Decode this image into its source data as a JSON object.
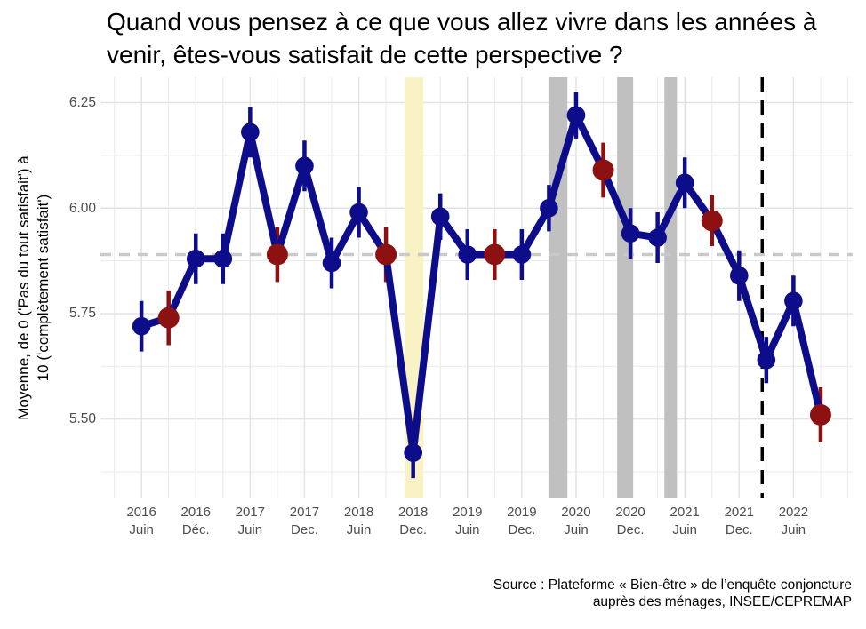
{
  "chart_data": {
    "type": "line",
    "title": "Quand vous pensez à ce que vous allez vivre dans les années à venir, êtes-vous satisfait de cette perspective ?",
    "title_lines": [
      "Quand vous pensez à ce que vous allez vivre dans les années à",
      "venir, êtes-vous satisfait de cette perspective ?"
    ],
    "ylabel": "Moyenne, de 0 ('Pas du tout satisfait') à 10 ('complètement satisfait')",
    "ylabel_lines": [
      "Moyenne, de 0 ('Pas du tout satisfait') à",
      "10 ('complètement satisfait')"
    ],
    "source": "Source : Plateforme « Bien-être » de l’enquête conjoncture auprès des ménages, INSEE/CEPREMAP",
    "source_lines": [
      "Source : Plateforme « Bien-être » de l’enquête conjoncture",
      "auprès des ménages, INSEE/CEPREMAP"
    ],
    "legend": false,
    "grid": true,
    "ylim": [
      5.31,
      6.31
    ],
    "y_ticks": [
      {
        "value": 6.25,
        "label": "6.25"
      },
      {
        "value": 6.0,
        "label": "6.00"
      },
      {
        "value": 5.75,
        "label": "5.75"
      },
      {
        "value": 5.5,
        "label": "5.50"
      }
    ],
    "y_minor": [
      6.125,
      5.875,
      5.625,
      5.375
    ],
    "x_ticks": [
      {
        "q": 0,
        "year": "2016",
        "month": "Juin"
      },
      {
        "q": 2,
        "year": "2016",
        "month": "Déc."
      },
      {
        "q": 4,
        "year": "2017",
        "month": "Juin"
      },
      {
        "q": 6,
        "year": "2017",
        "month": "Dec."
      },
      {
        "q": 8,
        "year": "2018",
        "month": "Juin"
      },
      {
        "q": 10,
        "year": "2018",
        "month": "Dec."
      },
      {
        "q": 12,
        "year": "2019",
        "month": "Juin"
      },
      {
        "q": 14,
        "year": "2019",
        "month": "Dec."
      },
      {
        "q": 16,
        "year": "2020",
        "month": "Juin"
      },
      {
        "q": 18,
        "year": "2020",
        "month": "Dec."
      },
      {
        "q": 20,
        "year": "2021",
        "month": "Juin"
      },
      {
        "q": 22,
        "year": "2021",
        "month": "Dec."
      },
      {
        "q": 24,
        "year": "2022",
        "month": "Juin"
      }
    ],
    "points": [
      {
        "date": "2016-06",
        "q": 0,
        "value": 5.72,
        "err": 0.06,
        "color_key": "blue"
      },
      {
        "date": "2016-09",
        "q": 1,
        "value": 5.74,
        "err": 0.065,
        "color_key": "red"
      },
      {
        "date": "2016-12",
        "q": 2,
        "value": 5.88,
        "err": 0.06,
        "color_key": "blue"
      },
      {
        "date": "2017-03",
        "q": 3,
        "value": 5.88,
        "err": 0.06,
        "color_key": "blue"
      },
      {
        "date": "2017-06",
        "q": 4,
        "value": 6.18,
        "err": 0.06,
        "color_key": "blue"
      },
      {
        "date": "2017-09",
        "q": 5,
        "value": 5.89,
        "err": 0.065,
        "color_key": "red"
      },
      {
        "date": "2017-12",
        "q": 6,
        "value": 6.1,
        "err": 0.06,
        "color_key": "blue"
      },
      {
        "date": "2018-03",
        "q": 7,
        "value": 5.87,
        "err": 0.06,
        "color_key": "blue"
      },
      {
        "date": "2018-06",
        "q": 8,
        "value": 5.99,
        "err": 0.06,
        "color_key": "blue"
      },
      {
        "date": "2018-09",
        "q": 9,
        "value": 5.89,
        "err": 0.065,
        "color_key": "red"
      },
      {
        "date": "2018-12",
        "q": 10,
        "value": 5.42,
        "err": 0.06,
        "color_key": "blue"
      },
      {
        "date": "2019-03",
        "q": 11,
        "value": 5.98,
        "err": 0.055,
        "color_key": "blue"
      },
      {
        "date": "2019-06",
        "q": 12,
        "value": 5.89,
        "err": 0.06,
        "color_key": "blue"
      },
      {
        "date": "2019-09",
        "q": 13,
        "value": 5.89,
        "err": 0.06,
        "color_key": "red"
      },
      {
        "date": "2019-12",
        "q": 14,
        "value": 5.89,
        "err": 0.06,
        "color_key": "blue"
      },
      {
        "date": "2020-03",
        "q": 15,
        "value": 6.0,
        "err": 0.055,
        "color_key": "blue"
      },
      {
        "date": "2020-06",
        "q": 16,
        "value": 6.22,
        "err": 0.055,
        "color_key": "blue"
      },
      {
        "date": "2020-09",
        "q": 17,
        "value": 6.09,
        "err": 0.065,
        "color_key": "red"
      },
      {
        "date": "2020-12",
        "q": 18,
        "value": 5.94,
        "err": 0.06,
        "color_key": "blue"
      },
      {
        "date": "2021-03",
        "q": 19,
        "value": 5.93,
        "err": 0.06,
        "color_key": "blue"
      },
      {
        "date": "2021-06",
        "q": 20,
        "value": 6.06,
        "err": 0.06,
        "color_key": "blue"
      },
      {
        "date": "2021-09",
        "q": 21,
        "value": 5.97,
        "err": 0.06,
        "color_key": "red"
      },
      {
        "date": "2021-12",
        "q": 22,
        "value": 5.84,
        "err": 0.06,
        "color_key": "blue"
      },
      {
        "date": "2022-03",
        "q": 23,
        "value": 5.64,
        "err": 0.055,
        "color_key": "blue"
      },
      {
        "date": "2022-06",
        "q": 24,
        "value": 5.78,
        "err": 0.06,
        "color_key": "blue"
      },
      {
        "date": "2022-09",
        "q": 25,
        "value": 5.51,
        "err": 0.065,
        "color_key": "red"
      }
    ],
    "mean_line_value": 5.89,
    "vline_q": 22.85,
    "bands": [
      {
        "color_key": "yellow",
        "from_q": 9.7,
        "to_q": 10.38
      },
      {
        "color_key": "gray",
        "from_q": 15.02,
        "to_q": 15.68
      },
      {
        "color_key": "gray",
        "from_q": 17.51,
        "to_q": 18.1
      },
      {
        "color_key": "gray",
        "from_q": 19.25,
        "to_q": 19.71
      }
    ],
    "colors": {
      "blue": "#0D0D8C",
      "red": "#8E1111",
      "yellow_band": "#F8F2C4",
      "gray_band": "#C0C0C0",
      "mean_line": "#C9C9C9",
      "vline": "#000000",
      "grid_major": "#E3E3E3",
      "grid_minor": "#EDEDED",
      "tick_text": "#4D4D4D"
    }
  }
}
